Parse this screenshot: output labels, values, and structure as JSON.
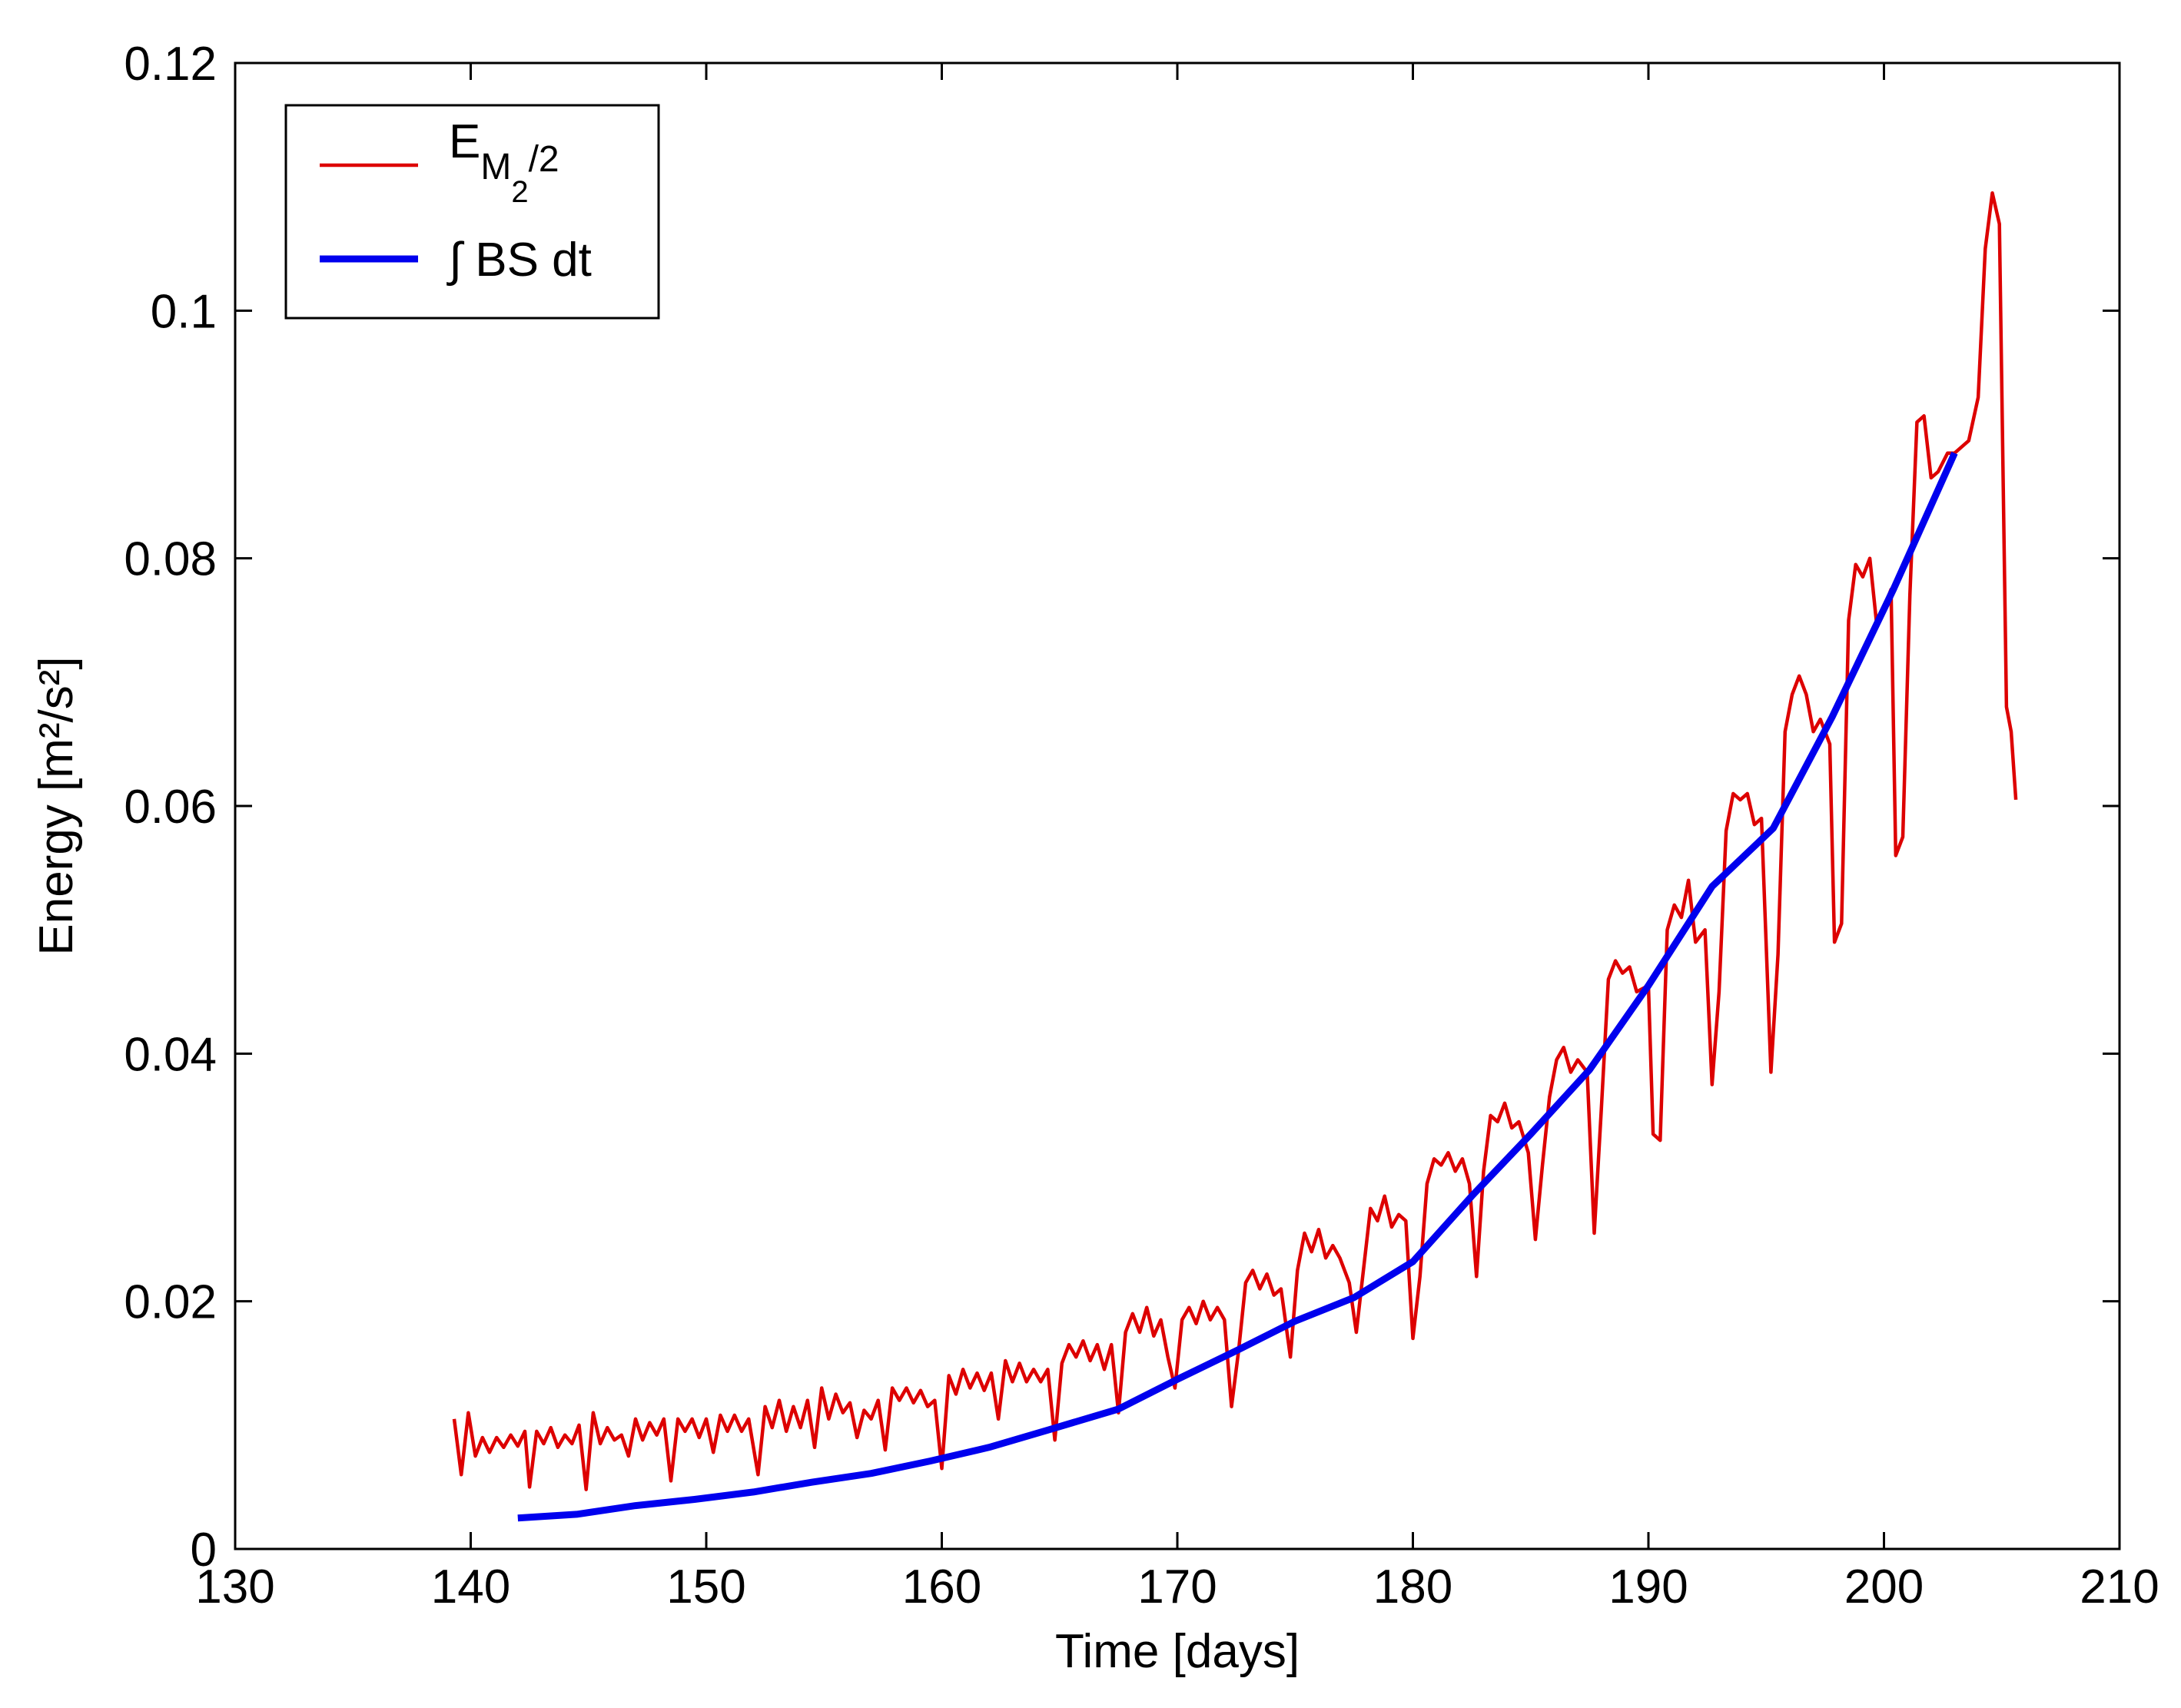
{
  "chart_data": {
    "type": "line",
    "xlabel": "Time [days]",
    "ylabel": "Energy [m²/s²]",
    "xlim": [
      130,
      210
    ],
    "xticks": [
      130,
      140,
      150,
      160,
      170,
      180,
      190,
      200,
      210
    ],
    "ylim": [
      0,
      0.12
    ],
    "yticks": [
      0,
      0.02,
      0.04,
      0.06,
      0.08,
      0.1,
      0.12
    ],
    "legend": "upper left",
    "series": [
      {
        "name": "EM2/2",
        "color": "#dd0000",
        "x": [
          139.3,
          139.6,
          139.9,
          140.2,
          140.5,
          140.8,
          141.1,
          141.4,
          141.7,
          142.0,
          142.3,
          142.5,
          142.8,
          143.1,
          143.4,
          143.7,
          144.0,
          144.3,
          144.6,
          144.9,
          145.2,
          145.5,
          145.8,
          146.1,
          146.4,
          146.7,
          147.0,
          147.3,
          147.6,
          147.9,
          148.2,
          148.5,
          148.8,
          149.1,
          149.4,
          149.7,
          150.0,
          150.3,
          150.6,
          150.9,
          151.2,
          151.5,
          151.8,
          152.2,
          152.5,
          152.8,
          153.1,
          153.4,
          153.7,
          154.0,
          154.3,
          154.6,
          154.9,
          155.2,
          155.5,
          155.8,
          156.1,
          156.4,
          156.7,
          157.0,
          157.3,
          157.6,
          157.9,
          158.2,
          158.5,
          158.8,
          159.1,
          159.4,
          159.7,
          160.0,
          160.3,
          160.6,
          160.9,
          161.2,
          161.5,
          161.8,
          162.1,
          162.4,
          162.7,
          163.0,
          163.3,
          163.6,
          163.9,
          164.2,
          164.5,
          164.8,
          165.1,
          165.4,
          165.7,
          166.0,
          166.3,
          166.6,
          166.9,
          167.2,
          167.5,
          167.8,
          168.1,
          168.4,
          168.7,
          169.0,
          169.3,
          169.6,
          169.9,
          170.2,
          170.5,
          170.8,
          171.1,
          171.4,
          171.7,
          172.0,
          172.3,
          172.6,
          172.9,
          173.2,
          173.5,
          173.8,
          174.1,
          174.4,
          174.8,
          175.1,
          175.4,
          175.7,
          176.0,
          176.3,
          176.6,
          176.9,
          177.3,
          177.6,
          177.9,
          178.2,
          178.5,
          178.8,
          179.1,
          179.4,
          179.7,
          180.0,
          180.3,
          180.6,
          180.9,
          181.2,
          181.5,
          181.8,
          182.1,
          182.4,
          182.7,
          183.0,
          183.3,
          183.6,
          183.9,
          184.2,
          184.5,
          184.9,
          185.2,
          185.5,
          185.8,
          186.1,
          186.4,
          186.7,
          187.0,
          187.4,
          187.7,
          188.0,
          188.3,
          188.6,
          188.9,
          189.2,
          189.5,
          190.0,
          190.2,
          190.5,
          190.8,
          191.1,
          191.4,
          191.7,
          192.0,
          192.4,
          192.7,
          193.0,
          193.3,
          193.6,
          193.9,
          194.2,
          194.5,
          194.8,
          195.2,
          195.5,
          195.8,
          196.1,
          196.4,
          196.7,
          197.0,
          197.3,
          197.7,
          197.9,
          198.2,
          198.5,
          198.8,
          199.1,
          199.4,
          199.7,
          200.0,
          200.3,
          200.5,
          200.8,
          201.1,
          201.4,
          201.7,
          202.0,
          202.3,
          202.7,
          203.0,
          203.6,
          204.0,
          204.3,
          204.6,
          204.9,
          205.2,
          205.4,
          205.6
        ],
        "values": [
          0.0105,
          0.006,
          0.011,
          0.0075,
          0.009,
          0.0078,
          0.009,
          0.0082,
          0.0092,
          0.0083,
          0.0095,
          0.005,
          0.0095,
          0.0085,
          0.0098,
          0.0082,
          0.0092,
          0.0085,
          0.01,
          0.0048,
          0.011,
          0.0085,
          0.0098,
          0.0088,
          0.0092,
          0.0075,
          0.0105,
          0.0088,
          0.0102,
          0.0092,
          0.0105,
          0.0055,
          0.0105,
          0.0095,
          0.0105,
          0.009,
          0.0105,
          0.0078,
          0.0108,
          0.0095,
          0.0108,
          0.0095,
          0.0105,
          0.006,
          0.0115,
          0.0098,
          0.012,
          0.0095,
          0.0115,
          0.0098,
          0.012,
          0.0082,
          0.013,
          0.0105,
          0.0125,
          0.011,
          0.0118,
          0.009,
          0.0112,
          0.0105,
          0.012,
          0.008,
          0.013,
          0.012,
          0.013,
          0.0118,
          0.0128,
          0.0115,
          0.012,
          0.0065,
          0.014,
          0.0125,
          0.0145,
          0.013,
          0.0142,
          0.0128,
          0.0142,
          0.0105,
          0.0152,
          0.0135,
          0.015,
          0.0135,
          0.0145,
          0.0135,
          0.0145,
          0.0088,
          0.015,
          0.0165,
          0.0155,
          0.0168,
          0.0152,
          0.0165,
          0.0145,
          0.0165,
          0.011,
          0.0175,
          0.019,
          0.0175,
          0.0195,
          0.0172,
          0.0185,
          0.0155,
          0.013,
          0.0185,
          0.0195,
          0.0182,
          0.02,
          0.0185,
          0.0195,
          0.0185,
          0.0115,
          0.016,
          0.0215,
          0.0225,
          0.021,
          0.0222,
          0.0205,
          0.021,
          0.0155,
          0.0225,
          0.0255,
          0.024,
          0.0258,
          0.0235,
          0.0245,
          0.0235,
          0.0215,
          0.0175,
          0.0225,
          0.0275,
          0.0265,
          0.0285,
          0.026,
          0.027,
          0.0265,
          0.017,
          0.022,
          0.0295,
          0.0315,
          0.031,
          0.032,
          0.0305,
          0.0315,
          0.0295,
          0.022,
          0.0305,
          0.035,
          0.0345,
          0.036,
          0.034,
          0.0345,
          0.032,
          0.025,
          0.031,
          0.0365,
          0.0395,
          0.0405,
          0.0385,
          0.0395,
          0.0385,
          0.0255,
          0.0355,
          0.046,
          0.0475,
          0.0465,
          0.047,
          0.045,
          0.0455,
          0.0335,
          0.033,
          0.05,
          0.052,
          0.051,
          0.054,
          0.049,
          0.05,
          0.0375,
          0.045,
          0.058,
          0.061,
          0.0605,
          0.061,
          0.0585,
          0.059,
          0.0385,
          0.048,
          0.066,
          0.069,
          0.0705,
          0.069,
          0.066,
          0.067,
          0.065,
          0.049,
          0.0505,
          0.075,
          0.0795,
          0.0785,
          0.08,
          0.0745,
          0.076,
          0.0775,
          0.056,
          0.0575,
          0.077,
          0.091,
          0.0915,
          0.0865,
          0.087,
          0.0885,
          0.0885,
          0.0895,
          0.093,
          0.105,
          0.1095,
          0.107,
          0.068,
          0.066,
          0.0605
        ]
      },
      {
        "name": "∫ BS dt",
        "color": "#0000ee",
        "x": [
          142,
          144.5,
          147,
          149.5,
          152,
          154.5,
          157,
          159.5,
          162,
          164.5,
          167.5,
          170,
          172.5,
          175,
          177.5,
          180,
          182.5,
          185,
          187.5,
          190,
          192.7,
          195.3,
          197.8,
          200.4,
          203
        ],
        "values": [
          0.0025,
          0.0028,
          0.0035,
          0.004,
          0.0046,
          0.0054,
          0.0061,
          0.0071,
          0.0082,
          0.0096,
          0.0113,
          0.0137,
          0.016,
          0.0184,
          0.0203,
          0.0232,
          0.0285,
          0.0335,
          0.0387,
          0.0455,
          0.0535,
          0.0582,
          0.0672,
          0.0775,
          0.0885
        ]
      }
    ]
  }
}
